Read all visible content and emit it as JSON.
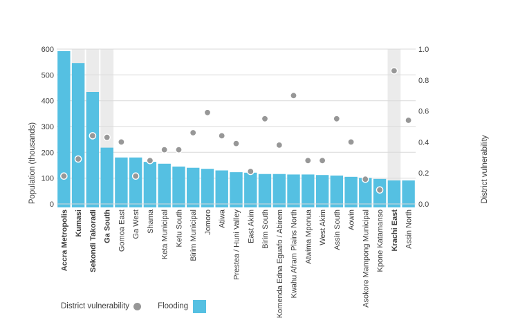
{
  "legend": {
    "vulnerability_label": "District vulnerability",
    "flooding_label": "Flooding"
  },
  "colors": {
    "bar": "#55c0e2",
    "dot": "#979797",
    "dot_ring": "#ffffff",
    "highlight_band": "#ebebeb",
    "gridline": "#d9d9d9",
    "text": "#3d3d3d"
  },
  "chart_data": {
    "type": "bar",
    "subtype": "bar + scatter combo, dual y-axis",
    "categories": [
      "Accra Metropolis",
      "Kumasi",
      "Sekondi Takoradi",
      "Ga South",
      "Gomoa East",
      "Ga West",
      "Shama",
      "Keta Municipal",
      "Ketu South",
      "Birim Municipal",
      "Jomoro",
      "Atiwa",
      "Prestea / Huni Valley",
      "East Akim",
      "Birim South",
      "Komenda Edna Eguafo / Abirem",
      "Kwahu Afram Plains North",
      "Atwima Mponua",
      "West Akim",
      "Assin South",
      "Aowin",
      "Asokore Mampong Municipal",
      "Kpone Katamanso",
      "Krachi East",
      "Assin North"
    ],
    "bold_categories": [
      "Accra Metropolis",
      "Kumasi",
      "Sekondi Takoradi",
      "Ga South",
      "Krachi East"
    ],
    "highlight_band_categories": [
      "Kumasi",
      "Sekondi Takoradi",
      "Ga South",
      "Krachi East"
    ],
    "series": [
      {
        "name": "Flooding",
        "type": "bar",
        "axis": "left",
        "values": [
          592,
          546,
          434,
          218,
          180,
          180,
          163,
          156,
          145,
          140,
          136,
          130,
          123,
          121,
          116,
          116,
          114,
          114,
          112,
          110,
          105,
          101,
          97,
          91,
          91
        ]
      },
      {
        "name": "District vulnerability",
        "type": "scatter",
        "axis": "right",
        "values": [
          0.18,
          0.29,
          0.44,
          0.43,
          0.4,
          0.18,
          0.28,
          0.35,
          0.35,
          0.46,
          0.59,
          0.44,
          0.39,
          0.21,
          0.55,
          0.38,
          0.7,
          0.28,
          0.28,
          0.55,
          0.4,
          0.16,
          0.09,
          0.86,
          0.54
        ]
      }
    ],
    "left_axis": {
      "label": "Population (thousands)",
      "range": [
        0,
        600
      ],
      "ticks": [
        "0",
        "100",
        "200",
        "300",
        "400",
        "500",
        "600"
      ]
    },
    "right_axis": {
      "label": "District vulnerability",
      "range": [
        0,
        1
      ],
      "ticks": [
        "0.0",
        "0.2",
        "0.4",
        "0.6",
        "0.8",
        "1.0"
      ]
    },
    "grid": "horizontal gridlines at left-axis 100 intervals",
    "legend_position": "bottom-left"
  }
}
